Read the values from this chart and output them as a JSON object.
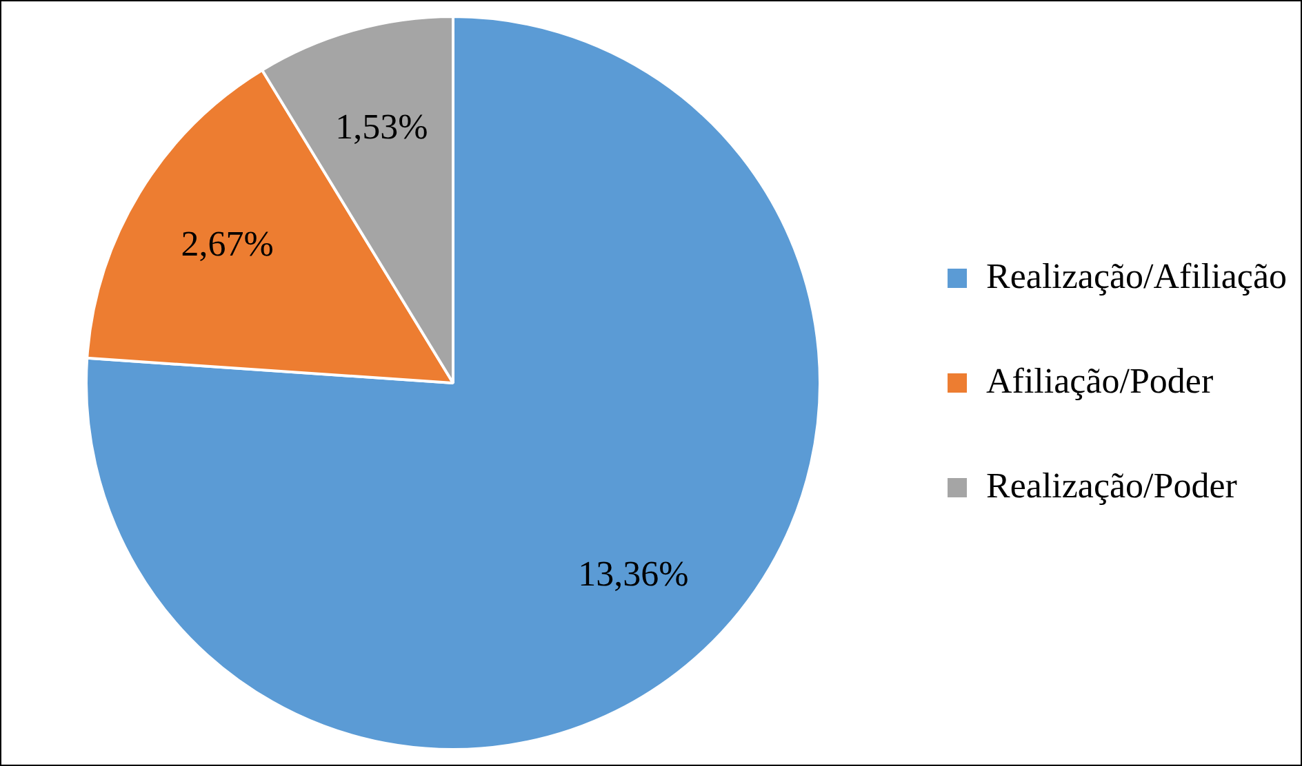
{
  "chart_data": {
    "type": "pie",
    "categories": [
      "Realização/Afiliação",
      "Afiliação/Poder",
      "Realização/Poder"
    ],
    "values": [
      13.36,
      2.67,
      1.53
    ],
    "colors": [
      "#5b9bd5",
      "#ed7d31",
      "#a5a5a5"
    ],
    "value_labels": [
      "13,36%",
      "2,67%",
      "1,53%"
    ],
    "legend": "right"
  }
}
